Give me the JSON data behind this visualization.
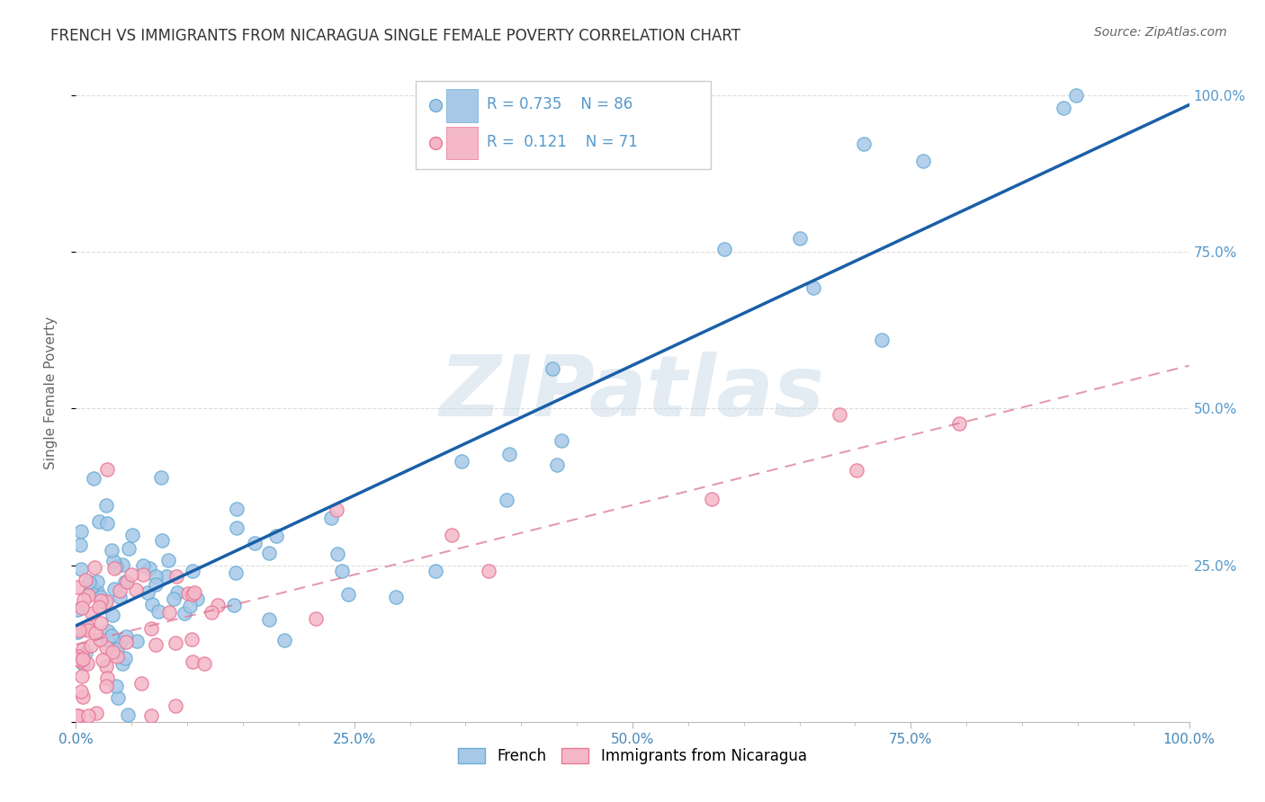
{
  "title": "FRENCH VS IMMIGRANTS FROM NICARAGUA SINGLE FEMALE POVERTY CORRELATION CHART",
  "source": "Source: ZipAtlas.com",
  "ylabel": "Single Female Poverty",
  "watermark": "ZIPatlas",
  "french_R": 0.735,
  "french_N": 86,
  "nicaragua_R": 0.121,
  "nicaragua_N": 71,
  "french_color": "#a8c8e8",
  "french_edge_color": "#6baed6",
  "nicaragua_color": "#f4b8c8",
  "nicaragua_edge_color": "#e87898",
  "french_line_color": "#1a5fa8",
  "nicaragua_line_color": "#d87090",
  "right_axis_color": "#5599cc",
  "title_color": "#333333",
  "source_color": "#666666",
  "background_color": "#ffffff",
  "grid_color": "#dddddd",
  "watermark_color": "#c8d8e8",
  "legend_box_color": "#e8e8f0"
}
